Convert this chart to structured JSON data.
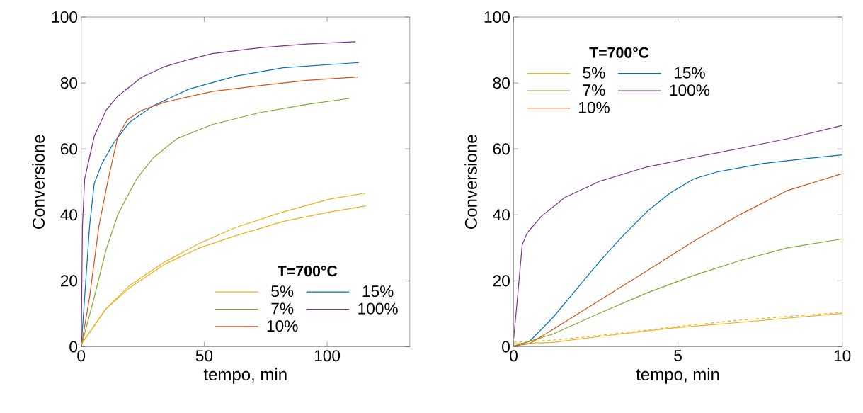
{
  "chart_data": [
    {
      "type": "line",
      "xlabel": "tempo, min",
      "ylabel": "Conversione",
      "xlim": [
        0,
        133.6
      ],
      "xticks": [
        0,
        50,
        100
      ],
      "ylim": [
        0,
        100
      ],
      "yticks": [
        0,
        20,
        40,
        60,
        80,
        100
      ],
      "legend": "bottom right",
      "legend_title": "T=700°C",
      "series": [
        {
          "name": "5%",
          "color": "#edb120",
          "x": [
            0,
            10.1,
            19.7,
            34.1,
            48.5,
            62.9,
            82.1,
            101.2,
            115.6
          ],
          "values": [
            0.7,
            11.5,
            18.6,
            25.8,
            31.5,
            36.2,
            40.9,
            44.8,
            46.6
          ]
        },
        {
          "name": "15%",
          "color": "#0072bd",
          "x": [
            0,
            1.4,
            3.4,
            5.3,
            8.2,
            13,
            19.7,
            29.3,
            43.7,
            62.9,
            82.1,
            112.9
          ],
          "values": [
            0,
            15,
            36.6,
            49.5,
            55.2,
            61.6,
            68.1,
            73.1,
            78.1,
            82.1,
            84.6,
            86.2
          ]
        },
        {
          "name": "7%",
          "color": "#77ac30",
          "x": [
            0,
            5.3,
            10.1,
            14.9,
            22.5,
            29.3,
            38.9,
            53.3,
            72.5,
            91.7,
            108.9
          ],
          "values": [
            0,
            15,
            29.4,
            40.1,
            50.9,
            57.3,
            63.1,
            67.4,
            71,
            73.5,
            75.3
          ]
        },
        {
          "name": "100%",
          "color": "#7e2f8e",
          "x": [
            0,
            0.5,
            1.4,
            5.3,
            10.1,
            14.9,
            24.5,
            34.1,
            43.7,
            53.3,
            72.5,
            91.7,
            111.5
          ],
          "values": [
            0,
            36.6,
            50.9,
            63.8,
            71.7,
            76,
            81.7,
            85,
            87.1,
            88.9,
            90.7,
            91.8,
            92.5
          ]
        },
        {
          "name": "10%",
          "color": "#d95319",
          "x": [
            0,
            3.4,
            7.2,
            11,
            14.9,
            18.7,
            24.5,
            34.1,
            53.3,
            72.5,
            91.7,
            112.4
          ],
          "values": [
            0,
            15,
            36.6,
            50.9,
            63.8,
            68.8,
            71.7,
            74.2,
            77.4,
            79.2,
            80.8,
            81.8
          ]
        },
        {
          "color": "#edb120",
          "x": [
            0,
            10.1,
            19.7,
            34.1,
            48.5,
            62.9,
            82.1,
            101.2,
            115.8
          ],
          "values": [
            0.7,
            11.5,
            17.9,
            25.1,
            30.1,
            33.7,
            38,
            40.9,
            42.7
          ]
        }
      ]
    },
    {
      "type": "line",
      "xlabel": "tempo, min",
      "ylabel": "Conversione",
      "xlim": [
        0,
        10
      ],
      "xticks": [
        0,
        5,
        10
      ],
      "ylim": [
        0,
        100
      ],
      "yticks": [
        0,
        20,
        40,
        60,
        80,
        100
      ],
      "legend": "top left",
      "legend_title": "T=700°C",
      "series": [
        {
          "name": "5%",
          "color": "#edb120",
          "x": [
            0,
            1.19,
            2.62,
            4.76,
            6.91,
            10
          ],
          "values": [
            0.9,
            1.3,
            3.1,
            5.6,
            7.4,
            10.1
          ]
        },
        {
          "name": "15%",
          "color": "#0072bd",
          "x": [
            0,
            0.48,
            1.19,
            1.91,
            2.62,
            3.34,
            4.05,
            4.76,
            5.48,
            6.19,
            7.62,
            9.05,
            10
          ],
          "values": [
            0.2,
            1.6,
            8.8,
            17.4,
            25.9,
            33.8,
            40.9,
            46.6,
            50.9,
            53,
            55.6,
            57.2,
            58.2
          ]
        },
        {
          "name": "7%",
          "color": "#77ac30",
          "x": [
            0,
            1.19,
            2.62,
            4.05,
            5.48,
            6.91,
            8.34,
            10
          ],
          "values": [
            0.2,
            3.8,
            10.2,
            16.3,
            21.6,
            26.2,
            30,
            32.7
          ]
        },
        {
          "name": "100%",
          "color": "#7e2f8e",
          "x": [
            0,
            0.12,
            0.26,
            0.41,
            0.84,
            1.55,
            2.62,
            4.05,
            5.48,
            6.91,
            8.34,
            10
          ],
          "values": [
            2.4,
            15.2,
            30.9,
            34.5,
            39.5,
            45.2,
            50.2,
            54.5,
            57.4,
            60.2,
            63.1,
            67.1
          ]
        },
        {
          "name": "10%",
          "color": "#d95319",
          "x": [
            0,
            0.48,
            1.19,
            2.62,
            4.05,
            5.48,
            6.91,
            8.34,
            10
          ],
          "values": [
            0.2,
            0.9,
            5.2,
            14.1,
            23,
            32,
            40.2,
            47.4,
            52.5
          ]
        },
        {
          "color": "#edb120",
          "line_style": "dashed",
          "x": [
            0,
            1.19,
            2.62,
            4.76,
            6.91,
            10
          ],
          "values": [
            1.3,
            2,
            3.4,
            5.9,
            8.1,
            10.4
          ]
        }
      ]
    }
  ]
}
